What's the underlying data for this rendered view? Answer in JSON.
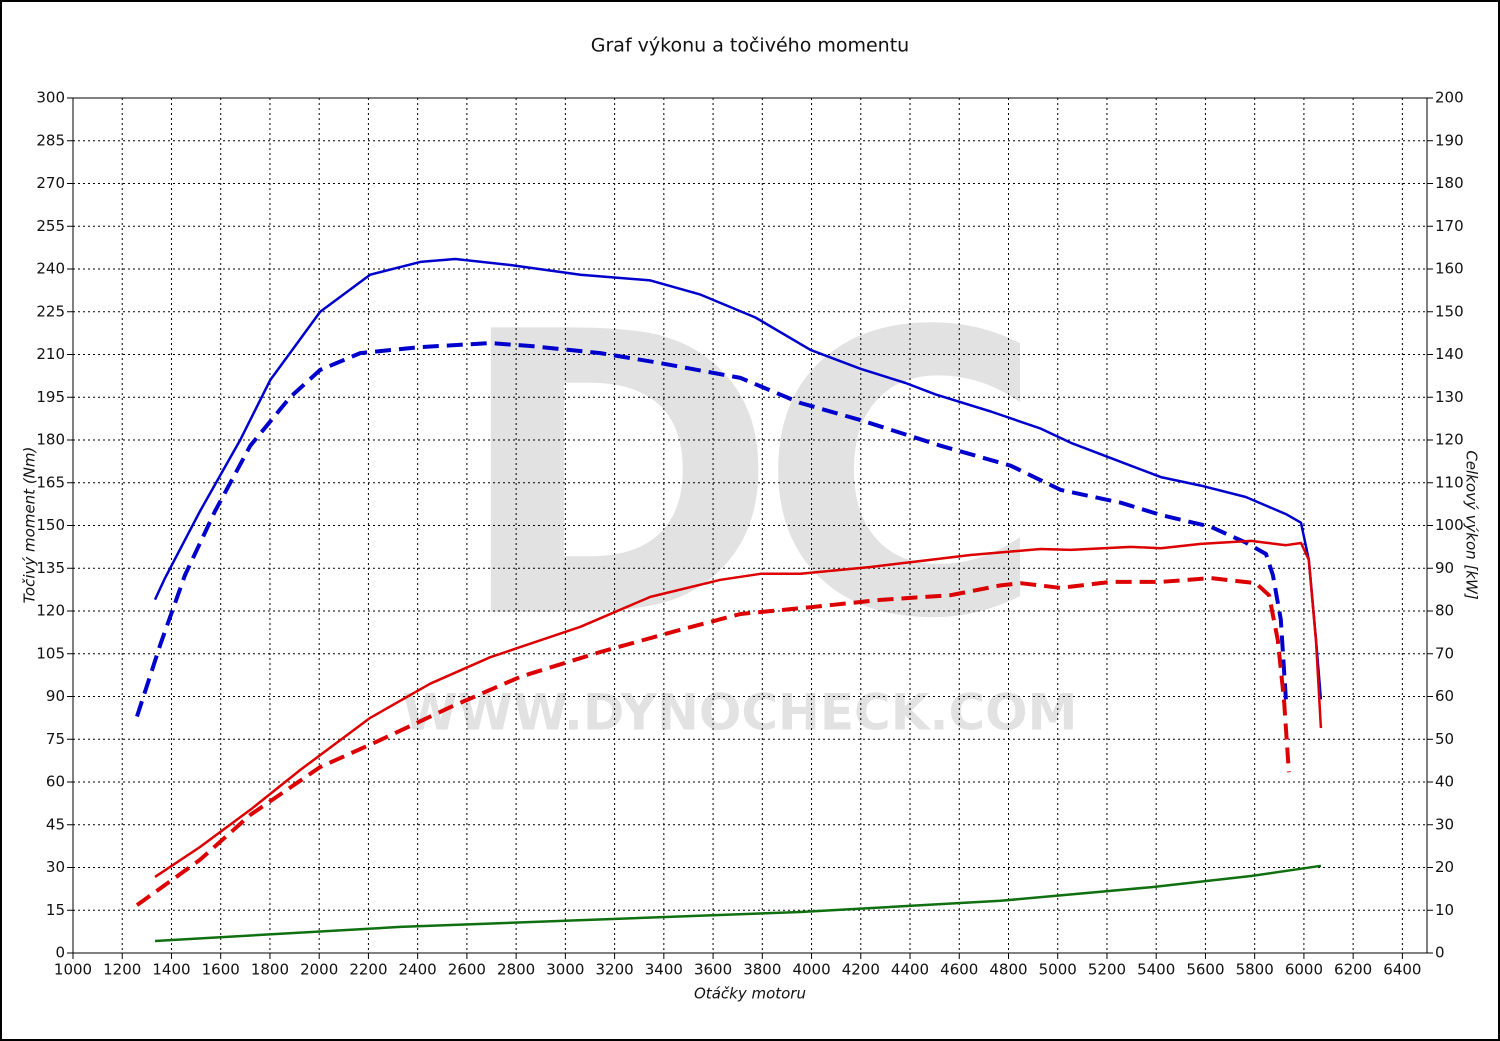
{
  "chart_data": {
    "type": "line",
    "title": "Graf výkonu a točivého momentu",
    "xlabel": "Otáčky motoru",
    "ylabel": "Točivý moment (Nm)",
    "y2label": "Celkový výkon [kW]",
    "watermark": [
      "DC",
      "WWW.DYNOCHECK.COM"
    ],
    "xlim": [
      1000,
      6500
    ],
    "xticks": [
      1000,
      1200,
      1400,
      1600,
      1800,
      2000,
      2200,
      2400,
      2600,
      2800,
      3000,
      3200,
      3400,
      3600,
      3800,
      4000,
      4200,
      4400,
      4600,
      4800,
      5000,
      5200,
      5400,
      5600,
      5800,
      6000,
      6200,
      6400
    ],
    "ylim": [
      0,
      300
    ],
    "yticks": [
      0,
      15,
      30,
      45,
      60,
      75,
      90,
      105,
      120,
      135,
      150,
      165,
      180,
      195,
      210,
      225,
      240,
      255,
      270,
      285,
      300
    ],
    "y2lim": [
      0,
      200
    ],
    "y2ticks": [
      0,
      10,
      20,
      30,
      40,
      50,
      60,
      70,
      80,
      90,
      100,
      110,
      120,
      130,
      140,
      150,
      160,
      170,
      180,
      190,
      200
    ],
    "grid": true,
    "series": [
      {
        "color": "#0000cc",
        "dash": false,
        "x": [
          1333,
          1374,
          1516,
          1679,
          1801,
          2004,
          2207,
          2411,
          2553,
          2776,
          3061,
          3345,
          3549,
          3772,
          3996,
          4199,
          4382,
          4504,
          4728,
          4931,
          5053,
          5297,
          5419,
          5581,
          5764,
          5927,
          5988,
          6020,
          6049,
          6069
        ],
        "values": [
          124,
          131.6,
          155,
          180,
          201,
          225,
          238,
          242.5,
          243.5,
          241.4,
          238,
          236,
          231,
          223,
          211.6,
          205,
          200,
          196,
          190,
          184,
          179,
          171,
          167,
          164,
          160,
          154,
          151,
          138,
          110,
          89
        ]
      },
      {
        "color": "#0000cc",
        "dash": true,
        "x": [
          1260,
          1354,
          1455,
          1577,
          1720,
          1882,
          2004,
          2167,
          2411,
          2695,
          2858,
          3142,
          3386,
          3711,
          3955,
          4199,
          4524,
          4809,
          5012,
          5256,
          5419,
          5622,
          5764,
          5846,
          5874,
          5906,
          5927
        ],
        "values": [
          83,
          108,
          132.6,
          155,
          178,
          195,
          204.6,
          210.5,
          212.6,
          214,
          213,
          210.5,
          207,
          201.8,
          193,
          187,
          178,
          171,
          162.5,
          158,
          153.7,
          149.5,
          144,
          140,
          132.6,
          117,
          89
        ]
      },
      {
        "color": "#dd0000",
        "dash": false,
        "axis": "y2",
        "x": [
          1333,
          1516,
          1720,
          1923,
          2207,
          2451,
          2695,
          3061,
          3345,
          3630,
          3793,
          3955,
          4240,
          4443,
          4646,
          4931,
          5053,
          5297,
          5419,
          5581,
          5785,
          5927,
          5988,
          6020,
          6049,
          6069
        ],
        "values": [
          17.8,
          24.8,
          33.5,
          42.8,
          55,
          63,
          69.2,
          76.3,
          83.3,
          87.3,
          88.7,
          88.7,
          90.3,
          91.7,
          93.1,
          94.5,
          94.3,
          95,
          94.7,
          95.7,
          96.4,
          95.4,
          95.9,
          92,
          73,
          52.6
        ]
      },
      {
        "color": "#dd0000",
        "dash": true,
        "axis": "y2",
        "x": [
          1260,
          1516,
          1720,
          2004,
          2248,
          2532,
          2817,
          3142,
          3467,
          3711,
          3996,
          4280,
          4565,
          4768,
          4850,
          5012,
          5215,
          5419,
          5622,
          5805,
          5858,
          5894,
          5919,
          5939
        ],
        "values": [
          11.2,
          21.8,
          32.3,
          43.5,
          49.8,
          57.5,
          64.6,
          70.4,
          75.6,
          79.3,
          80.9,
          82.6,
          83.7,
          86,
          86.5,
          85.4,
          86.8,
          86.8,
          87.7,
          86.5,
          83.7,
          73.2,
          59.2,
          42.3
        ]
      },
      {
        "color": "#107010",
        "dash": false,
        "axis": "y2",
        "x": [
          1333,
          2329,
          3955,
          4768,
          5378,
          5785,
          6069
        ],
        "values": [
          2.8,
          6.1,
          9.6,
          12.2,
          15.4,
          18,
          20.4
        ]
      }
    ]
  }
}
